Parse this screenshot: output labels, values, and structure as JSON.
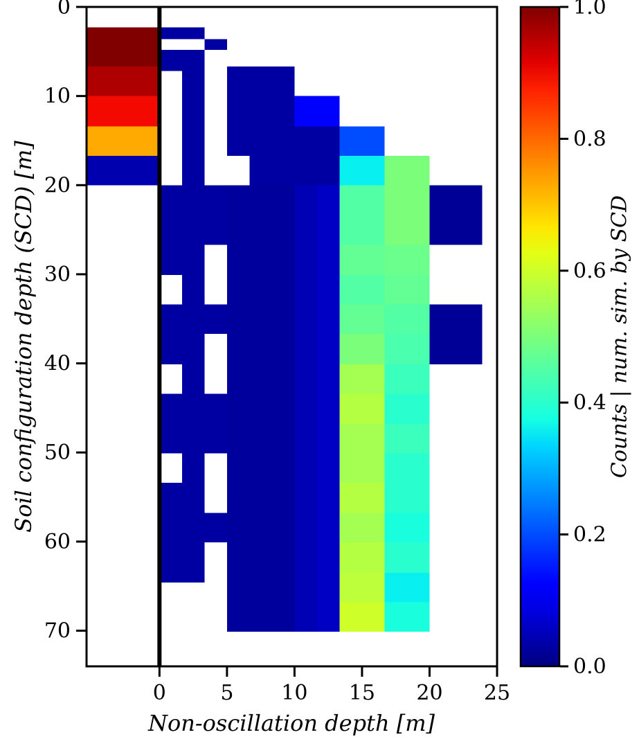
{
  "figure": {
    "background": "#ffffff",
    "spine_color": "#000000",
    "zero_line_color": "#000000"
  },
  "chart_data": {
    "type": "heatmap",
    "title": "",
    "xlabel": "Non-oscillation depth [m]",
    "ylabel": "Soil configuration depth (SCD) [m]",
    "colormap": "jet",
    "grid": false,
    "xlim": [
      -5.4,
      25
    ],
    "ylim": [
      74,
      0
    ],
    "x_ticks": [
      0,
      5,
      10,
      15,
      20,
      25
    ],
    "y_ticks": [
      0,
      10,
      20,
      30,
      40,
      50,
      60,
      70
    ],
    "zero_line_x": 0,
    "colorbar": {
      "label": "Counts | num. sim. by SCD",
      "vmin": 0.0,
      "vmax": 1.0,
      "ticks": [
        "0.0",
        "0.2",
        "0.4",
        "0.6",
        "0.8",
        "1.0"
      ]
    },
    "cells": [
      [
        -5.4,
        0,
        2.3,
        6.7,
        1.0
      ],
      [
        -5.4,
        0,
        6.7,
        10.0,
        0.96
      ],
      [
        -5.4,
        0,
        10.0,
        13.4,
        0.9
      ],
      [
        -5.4,
        0,
        13.4,
        16.7,
        0.73
      ],
      [
        -5.4,
        0,
        16.7,
        20.0,
        0.04
      ],
      [
        0,
        3.33,
        2.3,
        3.6,
        0.03
      ],
      [
        3.33,
        5.0,
        3.6,
        4.8,
        0.03
      ],
      [
        0,
        3.33,
        4.8,
        7.2,
        0.03
      ],
      [
        1.67,
        3.33,
        7.2,
        20.0,
        0.03
      ],
      [
        5.0,
        10.0,
        6.7,
        10.0,
        0.03
      ],
      [
        5.0,
        10.0,
        10.0,
        13.4,
        0.03
      ],
      [
        10.0,
        13.33,
        10.0,
        13.4,
        0.12
      ],
      [
        5.0,
        13.33,
        13.4,
        16.7,
        0.03
      ],
      [
        13.33,
        16.67,
        13.4,
        16.7,
        0.2
      ],
      [
        6.67,
        13.33,
        16.7,
        20.0,
        0.03
      ],
      [
        13.33,
        16.67,
        16.7,
        20.0,
        0.36
      ],
      [
        16.67,
        20.0,
        16.7,
        20.0,
        0.5
      ],
      [
        0,
        3.33,
        20.0,
        30.1,
        0.03
      ],
      [
        1.67,
        3.33,
        30.1,
        33.4,
        0.03
      ],
      [
        0,
        3.33,
        33.4,
        40.1,
        0.03
      ],
      [
        1.67,
        3.33,
        40.1,
        43.4,
        0.03
      ],
      [
        0,
        3.33,
        43.4,
        50.1,
        0.03
      ],
      [
        1.67,
        3.33,
        50.1,
        53.4,
        0.03
      ],
      [
        0,
        3.33,
        53.4,
        64.6,
        0.03
      ],
      [
        3.33,
        5.0,
        20.0,
        26.7,
        0.03
      ],
      [
        3.33,
        5.0,
        33.4,
        36.7,
        0.03
      ],
      [
        3.33,
        5.0,
        43.4,
        50.1,
        0.03
      ],
      [
        3.33,
        5.0,
        56.8,
        60.1,
        0.03
      ],
      [
        5.0,
        10.0,
        20.0,
        70.1,
        0.025
      ],
      [
        10.0,
        11.67,
        20.0,
        70.1,
        0.045
      ],
      [
        11.67,
        13.33,
        20.0,
        70.1,
        0.06
      ],
      [
        13.33,
        16.67,
        20.0,
        23.4,
        0.45
      ],
      [
        13.33,
        16.67,
        23.4,
        26.7,
        0.45
      ],
      [
        13.33,
        16.67,
        26.7,
        30.1,
        0.47
      ],
      [
        13.33,
        16.67,
        30.1,
        33.4,
        0.45
      ],
      [
        13.33,
        16.67,
        33.4,
        36.7,
        0.47
      ],
      [
        13.33,
        16.67,
        36.7,
        40.1,
        0.5
      ],
      [
        13.33,
        16.67,
        40.1,
        43.4,
        0.55
      ],
      [
        13.33,
        16.67,
        43.4,
        46.8,
        0.57
      ],
      [
        13.33,
        16.67,
        46.8,
        50.1,
        0.55
      ],
      [
        13.33,
        16.67,
        50.1,
        53.4,
        0.55
      ],
      [
        13.33,
        16.67,
        53.4,
        56.8,
        0.57
      ],
      [
        13.33,
        16.67,
        56.8,
        60.1,
        0.55
      ],
      [
        13.33,
        16.67,
        60.1,
        63.5,
        0.57
      ],
      [
        13.33,
        16.67,
        63.5,
        66.8,
        0.58
      ],
      [
        13.33,
        16.67,
        66.8,
        70.1,
        0.6
      ],
      [
        16.67,
        20.0,
        20.0,
        23.4,
        0.5
      ],
      [
        16.67,
        20.0,
        23.4,
        26.7,
        0.5
      ],
      [
        16.67,
        20.0,
        26.7,
        30.1,
        0.48
      ],
      [
        16.67,
        20.0,
        30.1,
        33.4,
        0.47
      ],
      [
        16.67,
        20.0,
        33.4,
        36.7,
        0.45
      ],
      [
        16.67,
        20.0,
        36.7,
        40.1,
        0.44
      ],
      [
        16.67,
        20.0,
        40.1,
        43.4,
        0.42
      ],
      [
        16.67,
        20.0,
        43.4,
        46.8,
        0.4
      ],
      [
        16.67,
        20.0,
        46.8,
        50.1,
        0.42
      ],
      [
        16.67,
        20.0,
        50.1,
        53.4,
        0.4
      ],
      [
        16.67,
        20.0,
        53.4,
        56.8,
        0.4
      ],
      [
        16.67,
        20.0,
        56.8,
        60.1,
        0.38
      ],
      [
        16.67,
        20.0,
        60.1,
        63.5,
        0.4
      ],
      [
        16.67,
        20.0,
        63.5,
        66.8,
        0.36
      ],
      [
        16.67,
        20.0,
        66.8,
        70.1,
        0.38
      ],
      [
        20.0,
        23.9,
        20.0,
        26.7,
        0.02
      ],
      [
        20.0,
        23.9,
        33.4,
        40.1,
        0.02
      ]
    ]
  }
}
